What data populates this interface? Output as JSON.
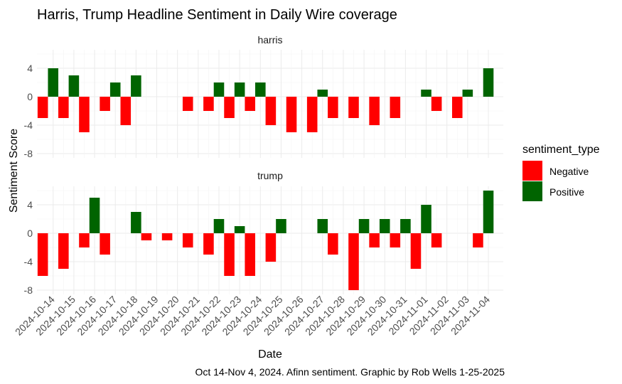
{
  "chart_data": {
    "type": "bar",
    "title": "Harris, Trump Headline Sentiment in Daily Wire coverage",
    "xlabel": "Date",
    "ylabel": "Sentiment Score",
    "caption": "Oct 14-Nov 4, 2024. Afinn sentiment. Graphic by Rob Wells 1-25-2025",
    "ylim": [
      -8.6,
      6.6
    ],
    "y_ticks": [
      -8,
      -4,
      0,
      4
    ],
    "grid": true,
    "legend": {
      "title": "sentiment_type",
      "position": "right",
      "entries": [
        {
          "label": "Negative",
          "color": "#ff0000"
        },
        {
          "label": "Positive",
          "color": "#006400"
        }
      ]
    },
    "date_labels": [
      "2024-10-14",
      "2024-10-15",
      "2024-10-16",
      "2024-10-17",
      "2024-10-18",
      "2024-10-19",
      "2024-10-20",
      "2024-10-21",
      "2024-10-22",
      "2024-10-23",
      "2024-10-24",
      "2024-10-25",
      "2024-10-26",
      "2024-10-27",
      "2024-10-28",
      "2024-10-29",
      "2024-10-30",
      "2024-10-31",
      "2024-11-01",
      "2024-11-02",
      "2024-11-03",
      "2024-11-04"
    ],
    "panels": [
      {
        "name": "harris",
        "bars": [
          {
            "date": "2024-10-13 12:00",
            "value": -3
          },
          {
            "date": "2024-10-14 00:00",
            "value": 4
          },
          {
            "date": "2024-10-14 12:00",
            "value": -3
          },
          {
            "date": "2024-10-15 00:00",
            "value": 3
          },
          {
            "date": "2024-10-15 12:00",
            "value": -5
          },
          {
            "date": "2024-10-16 12:00",
            "value": -2
          },
          {
            "date": "2024-10-17 00:00",
            "value": 2
          },
          {
            "date": "2024-10-17 12:00",
            "value": -4
          },
          {
            "date": "2024-10-18 00:00",
            "value": 3
          },
          {
            "date": "2024-10-20 12:00",
            "value": -2
          },
          {
            "date": "2024-10-21 12:00",
            "value": -2
          },
          {
            "date": "2024-10-22 00:00",
            "value": 2
          },
          {
            "date": "2024-10-22 12:00",
            "value": -3
          },
          {
            "date": "2024-10-23 00:00",
            "value": 2
          },
          {
            "date": "2024-10-23 12:00",
            "value": -2
          },
          {
            "date": "2024-10-24 00:00",
            "value": 2
          },
          {
            "date": "2024-10-24 12:00",
            "value": -4
          },
          {
            "date": "2024-10-25 12:00",
            "value": -5
          },
          {
            "date": "2024-10-26 12:00",
            "value": -5
          },
          {
            "date": "2024-10-27 00:00",
            "value": 1
          },
          {
            "date": "2024-10-27 12:00",
            "value": -3
          },
          {
            "date": "2024-10-28 12:00",
            "value": -3
          },
          {
            "date": "2024-10-29 12:00",
            "value": -4
          },
          {
            "date": "2024-10-30 12:00",
            "value": -3
          },
          {
            "date": "2024-11-01 00:00",
            "value": 1
          },
          {
            "date": "2024-11-01 12:00",
            "value": -2
          },
          {
            "date": "2024-11-02 12:00",
            "value": -3
          },
          {
            "date": "2024-11-03 00:00",
            "value": 1
          },
          {
            "date": "2024-11-04 00:00",
            "value": 4
          }
        ]
      },
      {
        "name": "trump",
        "bars": [
          {
            "date": "2024-10-13 12:00",
            "value": -6
          },
          {
            "date": "2024-10-14 12:00",
            "value": -5
          },
          {
            "date": "2024-10-15 12:00",
            "value": -2
          },
          {
            "date": "2024-10-16 00:00",
            "value": 5
          },
          {
            "date": "2024-10-16 12:00",
            "value": -3
          },
          {
            "date": "2024-10-18 00:00",
            "value": 3
          },
          {
            "date": "2024-10-18 12:00",
            "value": -1
          },
          {
            "date": "2024-10-19 12:00",
            "value": -1
          },
          {
            "date": "2024-10-20 12:00",
            "value": -2
          },
          {
            "date": "2024-10-21 12:00",
            "value": -3
          },
          {
            "date": "2024-10-22 00:00",
            "value": 2
          },
          {
            "date": "2024-10-22 12:00",
            "value": -6
          },
          {
            "date": "2024-10-23 00:00",
            "value": 1
          },
          {
            "date": "2024-10-23 12:00",
            "value": -6
          },
          {
            "date": "2024-10-24 12:00",
            "value": -4
          },
          {
            "date": "2024-10-25 00:00",
            "value": 2
          },
          {
            "date": "2024-10-27 00:00",
            "value": 2
          },
          {
            "date": "2024-10-27 12:00",
            "value": -3
          },
          {
            "date": "2024-10-28 12:00",
            "value": -8
          },
          {
            "date": "2024-10-29 00:00",
            "value": 2
          },
          {
            "date": "2024-10-29 12:00",
            "value": -2
          },
          {
            "date": "2024-10-30 00:00",
            "value": 2
          },
          {
            "date": "2024-10-30 12:00",
            "value": -2
          },
          {
            "date": "2024-10-31 00:00",
            "value": 2
          },
          {
            "date": "2024-10-31 12:00",
            "value": -5
          },
          {
            "date": "2024-11-01 00:00",
            "value": 4
          },
          {
            "date": "2024-11-01 12:00",
            "value": -2
          },
          {
            "date": "2024-11-03 12:00",
            "value": -2
          },
          {
            "date": "2024-11-04 00:00",
            "value": 6
          }
        ]
      }
    ]
  }
}
